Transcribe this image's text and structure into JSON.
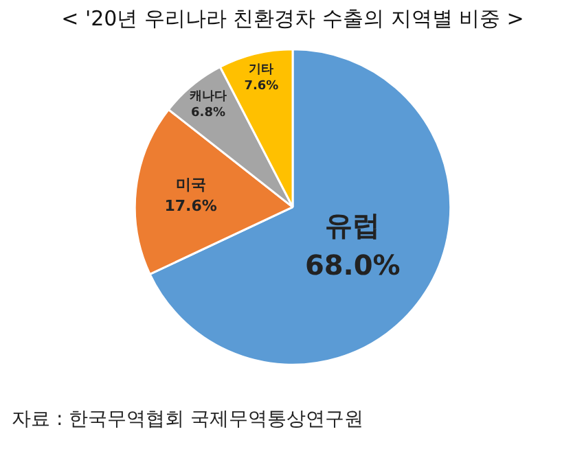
{
  "chart_data": {
    "type": "pie",
    "title": "< '20년 우리나라 친환경차 수출의 지역별 비중 >",
    "categories": [
      "유럽",
      "미국",
      "캐나다",
      "기타"
    ],
    "values": [
      68.0,
      17.6,
      6.8,
      7.6
    ],
    "colors": [
      "#5b9bd5",
      "#ed7d31",
      "#a5a5a5",
      "#ffc000"
    ],
    "value_labels": [
      "68.0%",
      "17.6%",
      "6.8%",
      "7.6%"
    ],
    "annotations": [
      "자료 : 한국무역협회 국제무역통상연구원"
    ]
  }
}
